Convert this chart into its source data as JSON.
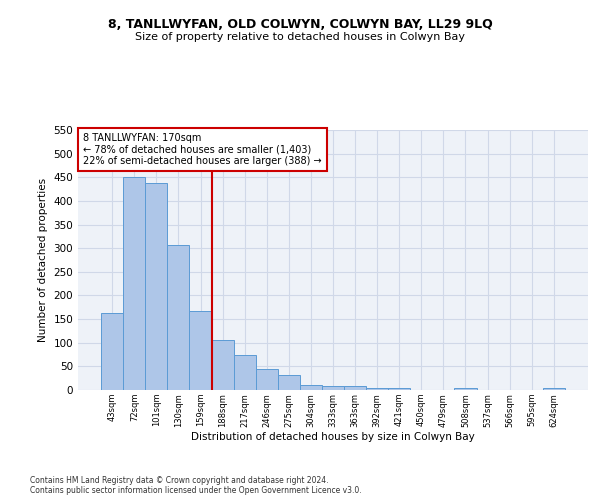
{
  "title": "8, TANLLWYFAN, OLD COLWYN, COLWYN BAY, LL29 9LQ",
  "subtitle": "Size of property relative to detached houses in Colwyn Bay",
  "xlabel": "Distribution of detached houses by size in Colwyn Bay",
  "ylabel": "Number of detached properties",
  "bar_color": "#aec6e8",
  "bar_edge_color": "#5b9bd5",
  "grid_color": "#d0d8e8",
  "bg_color": "#eef2f8",
  "vline_x": 4,
  "vline_color": "#cc0000",
  "annotation_text": "8 TANLLWYFAN: 170sqm\n← 78% of detached houses are smaller (1,403)\n22% of semi-detached houses are larger (388) →",
  "annotation_box_color": "#cc0000",
  "categories": [
    "43sqm",
    "72sqm",
    "101sqm",
    "130sqm",
    "159sqm",
    "188sqm",
    "217sqm",
    "246sqm",
    "275sqm",
    "304sqm",
    "333sqm",
    "363sqm",
    "392sqm",
    "421sqm",
    "450sqm",
    "479sqm",
    "508sqm",
    "537sqm",
    "566sqm",
    "595sqm",
    "624sqm"
  ],
  "values": [
    163,
    450,
    438,
    307,
    168,
    106,
    74,
    44,
    32,
    10,
    9,
    8,
    5,
    4,
    0,
    0,
    4,
    0,
    0,
    0,
    5
  ],
  "ylim": [
    0,
    550
  ],
  "yticks": [
    0,
    50,
    100,
    150,
    200,
    250,
    300,
    350,
    400,
    450,
    500,
    550
  ],
  "footer": "Contains HM Land Registry data © Crown copyright and database right 2024.\nContains public sector information licensed under the Open Government Licence v3.0.",
  "bar_width": 1.0,
  "figsize": [
    6.0,
    5.0
  ],
  "dpi": 100
}
